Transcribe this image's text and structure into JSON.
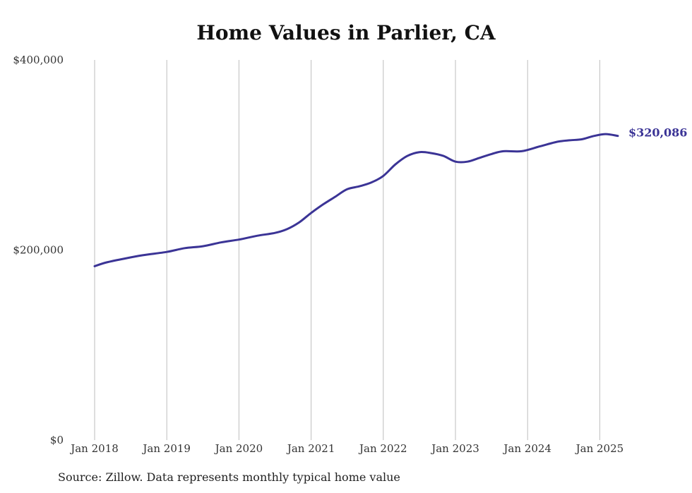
{
  "chart_data": {
    "type": "line",
    "title": "Home Values in Parlier, CA",
    "source": "Source: Zillow. Data represents monthly typical home value",
    "xlabel": "",
    "ylabel": "",
    "y_ticks": [
      {
        "value": 0,
        "label": "$0"
      },
      {
        "value": 200000,
        "label": "$200,000"
      },
      {
        "value": 400000,
        "label": "$400,000"
      }
    ],
    "ylim": [
      0,
      400000
    ],
    "x_ticks": [
      {
        "value": "2018-01",
        "label": "Jan 2018"
      },
      {
        "value": "2019-01",
        "label": "Jan 2019"
      },
      {
        "value": "2020-01",
        "label": "Jan 2020"
      },
      {
        "value": "2021-01",
        "label": "Jan 2021"
      },
      {
        "value": "2022-01",
        "label": "Jan 2022"
      },
      {
        "value": "2023-01",
        "label": "Jan 2023"
      },
      {
        "value": "2024-01",
        "label": "Jan 2024"
      },
      {
        "value": "2025-01",
        "label": "Jan 2025"
      }
    ],
    "xlim": [
      "2018-01",
      "2025-04"
    ],
    "grid": "vertical",
    "line_color": "#3b3496",
    "end_label": "$320,086",
    "series": [
      {
        "points": [
          [
            "2018-01",
            183000
          ],
          [
            "2018-03",
            187000
          ],
          [
            "2018-06",
            191000
          ],
          [
            "2018-09",
            194500
          ],
          [
            "2019-01",
            198000
          ],
          [
            "2019-04",
            202000
          ],
          [
            "2019-07",
            204000
          ],
          [
            "2019-10",
            208000
          ],
          [
            "2020-01",
            211000
          ],
          [
            "2020-04",
            215000
          ],
          [
            "2020-07",
            218000
          ],
          [
            "2020-09",
            222000
          ],
          [
            "2020-11",
            229000
          ],
          [
            "2021-01",
            239000
          ],
          [
            "2021-03",
            248000
          ],
          [
            "2021-05",
            256000
          ],
          [
            "2021-07",
            264000
          ],
          [
            "2021-09",
            267000
          ],
          [
            "2021-11",
            271000
          ],
          [
            "2022-01",
            278000
          ],
          [
            "2022-03",
            290000
          ],
          [
            "2022-05",
            299000
          ],
          [
            "2022-07",
            303000
          ],
          [
            "2022-09",
            302000
          ],
          [
            "2022-11",
            299000
          ],
          [
            "2023-01",
            293000
          ],
          [
            "2023-03",
            293000
          ],
          [
            "2023-05",
            297000
          ],
          [
            "2023-07",
            301000
          ],
          [
            "2023-09",
            304000
          ],
          [
            "2023-12",
            304000
          ],
          [
            "2024-03",
            309000
          ],
          [
            "2024-06",
            314000
          ],
          [
            "2024-08",
            315500
          ],
          [
            "2024-10",
            316500
          ],
          [
            "2024-12",
            320000
          ],
          [
            "2025-02",
            322000
          ],
          [
            "2025-04",
            320086
          ]
        ]
      }
    ]
  }
}
